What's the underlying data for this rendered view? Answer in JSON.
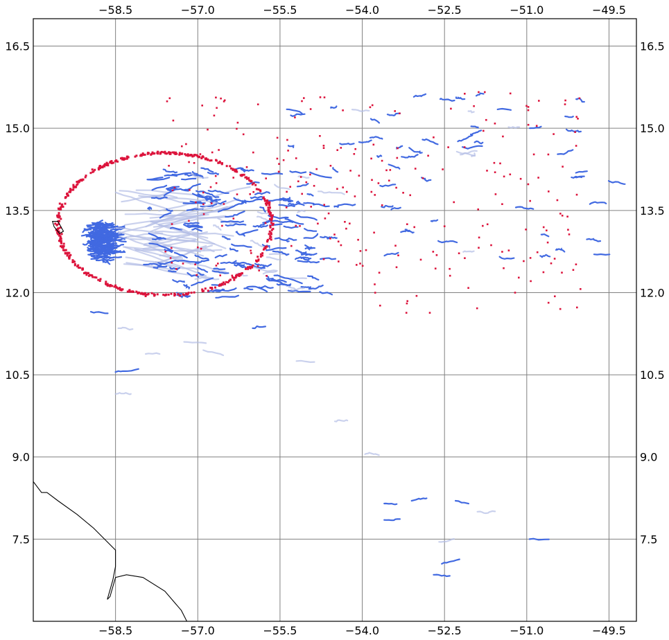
{
  "map": {
    "type": "drifter-trajectory-map",
    "lon_range": [
      -60.0,
      -49.0
    ],
    "lat_range": [
      6.0,
      17.0
    ],
    "grid": true,
    "lon_ticks": [
      {
        "value": -58.5,
        "label": "−58.5"
      },
      {
        "value": -57.0,
        "label": "−57.0"
      },
      {
        "value": -55.5,
        "label": "−55.5"
      },
      {
        "value": -54.0,
        "label": "−54.0"
      },
      {
        "value": -52.5,
        "label": "−52.5"
      },
      {
        "value": -51.0,
        "label": "−51.0"
      },
      {
        "value": -49.5,
        "label": "−49.5"
      }
    ],
    "lat_ticks": [
      {
        "value": 16.5,
        "label": "16.5"
      },
      {
        "value": 15.0,
        "label": "15.0"
      },
      {
        "value": 13.5,
        "label": "13.5"
      },
      {
        "value": 12.0,
        "label": "12.0"
      },
      {
        "value": 10.5,
        "label": "10.5"
      },
      {
        "value": 9.0,
        "label": "9.0"
      },
      {
        "value": 7.5,
        "label": "7.5"
      }
    ],
    "colors": {
      "trajectory": "#4169e1",
      "trajectory_faded": "#b4bee6",
      "particle_position": "#dc143c",
      "coastline": "#000000",
      "grid": "#808080"
    },
    "eddy_ring": {
      "center_lon": -57.6,
      "center_lat": 13.25,
      "radius_lon": 1.95,
      "radius_lat": 1.3
    },
    "coastlines": [
      {
        "name": "island",
        "points": [
          [
            -59.65,
            13.3
          ],
          [
            -59.55,
            13.3
          ],
          [
            -59.45,
            13.12
          ],
          [
            -59.52,
            13.08
          ],
          [
            -59.62,
            13.2
          ]
        ]
      },
      {
        "name": "mainland",
        "points": [
          [
            -60.0,
            8.55
          ],
          [
            -59.85,
            8.35
          ],
          [
            -59.75,
            8.35
          ],
          [
            -59.55,
            8.2
          ],
          [
            -59.2,
            7.95
          ],
          [
            -58.9,
            7.7
          ],
          [
            -58.7,
            7.5
          ],
          [
            -58.5,
            7.3
          ],
          [
            -58.5,
            7.0
          ],
          [
            -58.55,
            6.75
          ],
          [
            -58.65,
            6.4
          ],
          [
            -58.6,
            6.45
          ],
          [
            -58.5,
            6.8
          ],
          [
            -58.3,
            6.85
          ],
          [
            -58.0,
            6.8
          ],
          [
            -57.6,
            6.55
          ],
          [
            -57.3,
            6.2
          ],
          [
            -57.2,
            6.0
          ]
        ]
      }
    ]
  }
}
